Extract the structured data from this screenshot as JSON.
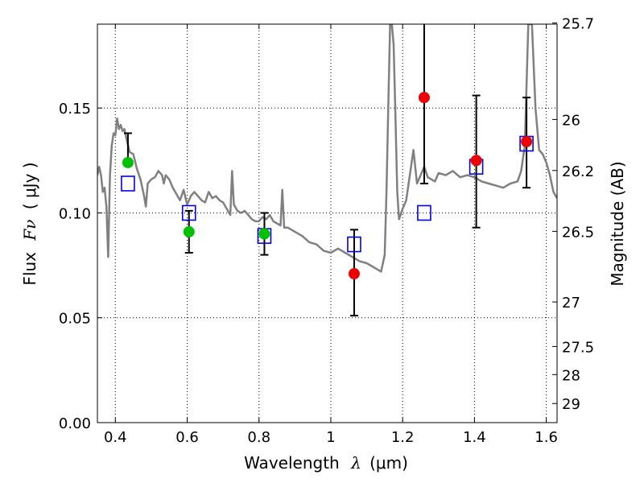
{
  "chart_data": {
    "type": "scatter",
    "xlabel_text": "Wavelength",
    "xlabel_symbol": "λ",
    "xlabel_unit": "(μm)",
    "ylabel_text": "Flux",
    "ylabel_symbol": "Fν",
    "ylabel_unit": "( μJy )",
    "y2label": "Magnitude (AB)",
    "xlim": [
      0.35,
      1.63
    ],
    "ylim": [
      0.0,
      0.19
    ],
    "grid": true,
    "x_ticks": [
      0.4,
      0.6,
      0.8,
      1.0,
      1.2,
      1.4,
      1.6
    ],
    "x_tick_labels": [
      "0.4",
      "0.6",
      "0.8",
      "1",
      "1.2",
      "1.4",
      "1.6"
    ],
    "y_ticks": [
      0.0,
      0.05,
      0.1,
      0.15
    ],
    "y_tick_labels": [
      "0.00",
      "0.05",
      "0.10",
      "0.15"
    ],
    "mag_ticks": [
      {
        "label": "25.7",
        "mag": 25.7
      },
      {
        "label": "26",
        "mag": 26.0
      },
      {
        "label": "26.2",
        "mag": 26.2
      },
      {
        "label": "26.5",
        "mag": 26.5
      },
      {
        "label": "27",
        "mag": 27.0
      },
      {
        "label": "27.5",
        "mag": 27.5
      },
      {
        "label": "28",
        "mag": 28.0
      },
      {
        "label": "29",
        "mag": 29.0
      }
    ],
    "colors": {
      "sed": "#808080",
      "green": "#00c000",
      "red": "#ee0000",
      "model": "#0000ee",
      "error": "#000000"
    },
    "sed_model": {
      "x": [
        0.35,
        0.355,
        0.36,
        0.365,
        0.37,
        0.375,
        0.38,
        0.385,
        0.39,
        0.395,
        0.4,
        0.405,
        0.41,
        0.415,
        0.42,
        0.425,
        0.43,
        0.44,
        0.45,
        0.46,
        0.47,
        0.48,
        0.485,
        0.49,
        0.5,
        0.51,
        0.52,
        0.53,
        0.535,
        0.54,
        0.55,
        0.56,
        0.57,
        0.58,
        0.59,
        0.6,
        0.61,
        0.62,
        0.63,
        0.64,
        0.65,
        0.66,
        0.67,
        0.68,
        0.69,
        0.7,
        0.71,
        0.72,
        0.725,
        0.73,
        0.74,
        0.75,
        0.76,
        0.77,
        0.78,
        0.79,
        0.8,
        0.81,
        0.82,
        0.83,
        0.84,
        0.85,
        0.86,
        0.865,
        0.87,
        0.88,
        0.9,
        0.92,
        0.94,
        0.96,
        0.98,
        1.0,
        1.02,
        1.04,
        1.06,
        1.08,
        1.1,
        1.12,
        1.14,
        1.15,
        1.155,
        1.16,
        1.165,
        1.17,
        1.175,
        1.18,
        1.185,
        1.19,
        1.2,
        1.21,
        1.22,
        1.23,
        1.24,
        1.25,
        1.26,
        1.27,
        1.28,
        1.29,
        1.3,
        1.32,
        1.34,
        1.36,
        1.38,
        1.4,
        1.42,
        1.44,
        1.46,
        1.48,
        1.5,
        1.52,
        1.53,
        1.54,
        1.55,
        1.56,
        1.57,
        1.58,
        1.59,
        1.6,
        1.61,
        1.62,
        1.63
      ],
      "y": [
        0.118,
        0.122,
        0.118,
        0.11,
        0.112,
        0.103,
        0.079,
        0.118,
        0.132,
        0.138,
        0.137,
        0.145,
        0.14,
        0.142,
        0.139,
        0.14,
        0.136,
        0.129,
        0.128,
        0.121,
        0.116,
        0.108,
        0.103,
        0.114,
        0.116,
        0.117,
        0.12,
        0.118,
        0.114,
        0.118,
        0.116,
        0.112,
        0.109,
        0.106,
        0.111,
        0.104,
        0.108,
        0.11,
        0.108,
        0.106,
        0.105,
        0.11,
        0.107,
        0.108,
        0.106,
        0.105,
        0.102,
        0.099,
        0.12,
        0.104,
        0.101,
        0.1,
        0.101,
        0.099,
        0.097,
        0.096,
        0.096,
        0.098,
        0.097,
        0.099,
        0.096,
        0.095,
        0.094,
        0.111,
        0.093,
        0.093,
        0.091,
        0.089,
        0.086,
        0.085,
        0.082,
        0.081,
        0.083,
        0.081,
        0.079,
        0.077,
        0.076,
        0.074,
        0.072,
        0.08,
        0.11,
        0.15,
        0.19,
        0.19,
        0.18,
        0.145,
        0.11,
        0.097,
        0.102,
        0.106,
        0.118,
        0.13,
        0.114,
        0.118,
        0.122,
        0.117,
        0.116,
        0.115,
        0.119,
        0.118,
        0.12,
        0.117,
        0.118,
        0.117,
        0.115,
        0.114,
        0.113,
        0.112,
        0.114,
        0.115,
        0.12,
        0.132,
        0.19,
        0.19,
        0.15,
        0.13,
        0.128,
        0.124,
        0.118,
        0.11,
        0.107
      ]
    },
    "model_photometry": {
      "x": [
        0.435,
        0.605,
        0.815,
        1.065,
        1.26,
        1.405,
        1.545
      ],
      "y": [
        0.114,
        0.1,
        0.089,
        0.085,
        0.1,
        0.122,
        0.133
      ]
    },
    "observed_green": {
      "x": [
        0.435,
        0.605,
        0.815
      ],
      "y": [
        0.124,
        0.091,
        0.09
      ],
      "err_low": [
        0.124,
        0.081,
        0.08
      ],
      "err_high": [
        0.138,
        0.101,
        0.1
      ]
    },
    "observed_red": {
      "x": [
        1.065,
        1.26,
        1.405,
        1.545
      ],
      "y": [
        0.071,
        0.155,
        0.125,
        0.134
      ],
      "err_low": [
        0.051,
        0.114,
        0.093,
        0.112
      ],
      "err_high": [
        0.092,
        0.19,
        0.156,
        0.155
      ]
    }
  }
}
